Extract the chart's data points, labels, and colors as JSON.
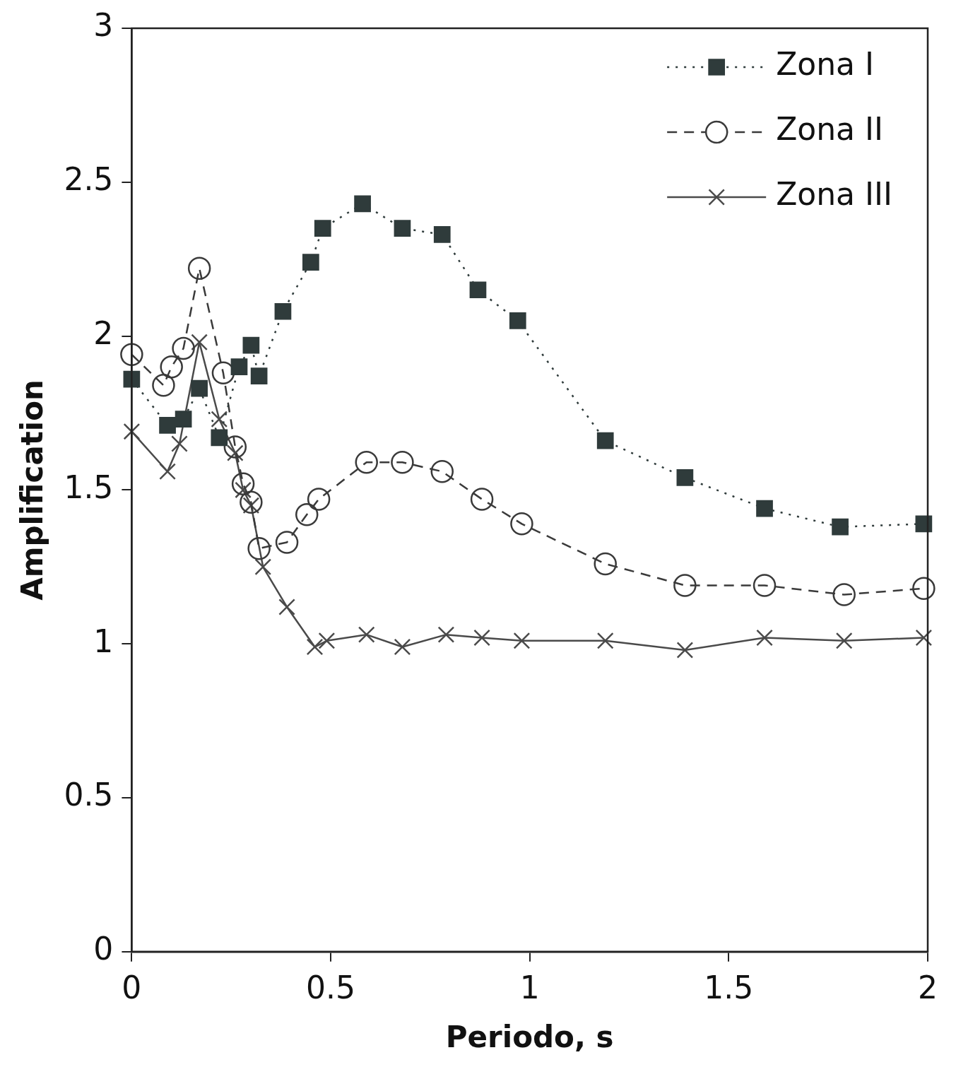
{
  "chart_data": {
    "type": "line",
    "xlabel": "Periodo, s",
    "ylabel": "Amplification",
    "xlim": [
      0,
      2
    ],
    "ylim": [
      0,
      3
    ],
    "xticks": [
      0,
      0.5,
      1,
      1.5,
      2
    ],
    "yticks": [
      0,
      0.5,
      1,
      1.5,
      2,
      2.5,
      3
    ],
    "legend": "top right",
    "series": [
      {
        "name": "Zona I",
        "color": "#2f3b3b",
        "marker": "square",
        "line_style": "dotted",
        "x": [
          0,
          0.09,
          0.13,
          0.17,
          0.22,
          0.27,
          0.3,
          0.32,
          0.38,
          0.45,
          0.48,
          0.58,
          0.68,
          0.78,
          0.87,
          0.97,
          1.19,
          1.39,
          1.59,
          1.78,
          1.99
        ],
        "values": [
          1.86,
          1.71,
          1.73,
          1.83,
          1.67,
          1.9,
          1.97,
          1.87,
          2.08,
          2.24,
          2.35,
          2.43,
          2.35,
          2.33,
          2.15,
          2.05,
          1.66,
          1.54,
          1.44,
          1.38,
          1.39
        ]
      },
      {
        "name": "Zona II",
        "color": "#3a3a3a",
        "marker": "circle",
        "line_style": "dashed",
        "x": [
          0,
          0.08,
          0.1,
          0.13,
          0.17,
          0.23,
          0.26,
          0.28,
          0.3,
          0.32,
          0.39,
          0.44,
          0.47,
          0.59,
          0.68,
          0.78,
          0.88,
          0.98,
          1.19,
          1.39,
          1.59,
          1.79,
          1.99
        ],
        "values": [
          1.94,
          1.84,
          1.9,
          1.96,
          2.22,
          1.88,
          1.64,
          1.52,
          1.46,
          1.31,
          1.33,
          1.42,
          1.47,
          1.59,
          1.59,
          1.56,
          1.47,
          1.39,
          1.26,
          1.19,
          1.19,
          1.16,
          1.18
        ]
      },
      {
        "name": "Zona III",
        "color": "#4a4a4a",
        "marker": "cross",
        "line_style": "solid",
        "x": [
          0,
          0.09,
          0.12,
          0.17,
          0.22,
          0.26,
          0.28,
          0.3,
          0.33,
          0.39,
          0.46,
          0.49,
          0.59,
          0.68,
          0.79,
          0.88,
          0.98,
          1.19,
          1.39,
          1.59,
          1.79,
          1.99
        ],
        "values": [
          1.69,
          1.56,
          1.65,
          1.98,
          1.73,
          1.62,
          1.5,
          1.45,
          1.25,
          1.12,
          0.99,
          1.01,
          1.03,
          0.99,
          1.03,
          1.02,
          1.01,
          1.01,
          0.98,
          1.02,
          1.01,
          1.02
        ]
      }
    ]
  }
}
